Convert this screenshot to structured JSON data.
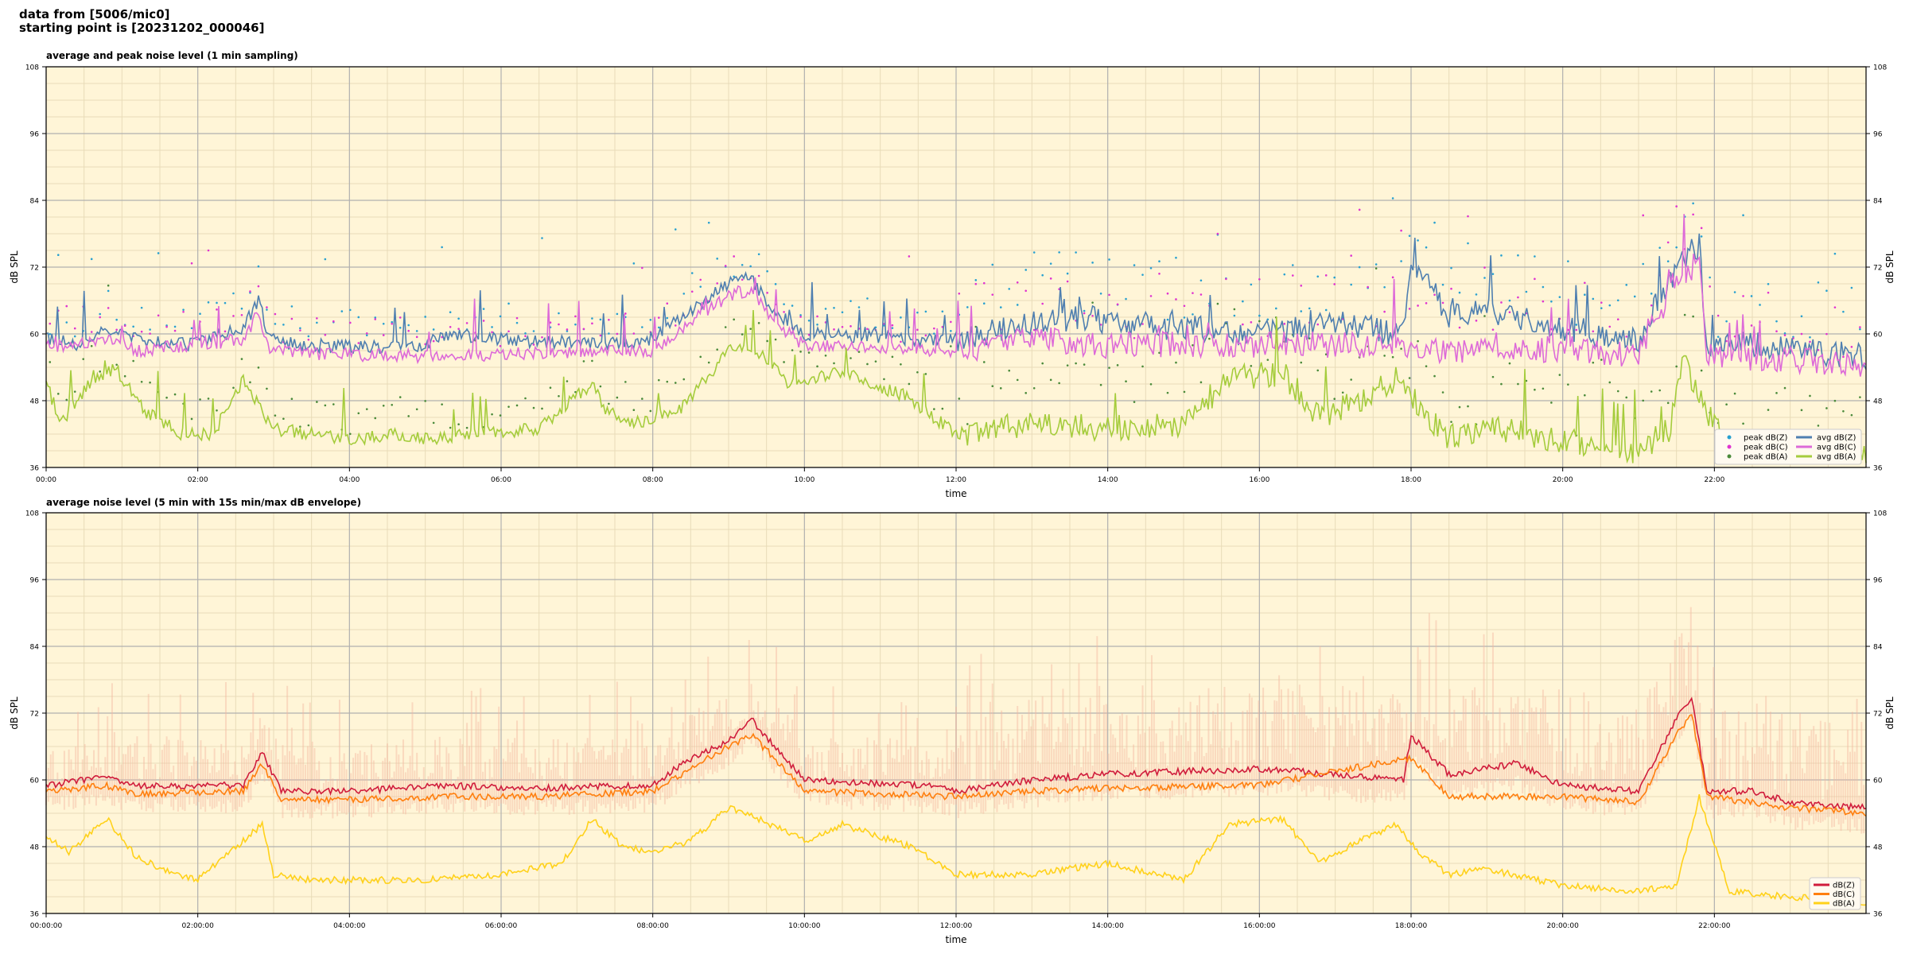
{
  "header": {
    "line1": "data from [5006/mic0]",
    "line2": "starting point is [20231202_000046]"
  },
  "chart_data": [
    {
      "type": "line",
      "title": "average and peak noise level (1 min sampling)",
      "xlabel": "time",
      "ylabel": "dB SPL",
      "ylim": [
        36,
        108
      ],
      "yticks": [
        "36",
        "48",
        "60",
        "72",
        "84",
        "96",
        "108"
      ],
      "xlim_hours": [
        0,
        24
      ],
      "xticks": [
        "00:00",
        "02:00",
        "04:00",
        "06:00",
        "08:00",
        "10:00",
        "12:00",
        "14:00",
        "16:00",
        "18:00",
        "20:00",
        "22:00"
      ],
      "grid": true,
      "background": "#fff5d7",
      "legend_position": "lower-right",
      "legend": [
        {
          "label": "peak dB(Z)",
          "kind": "point",
          "color": "#28a0d0"
        },
        {
          "label": "peak dB(C)",
          "kind": "point",
          "color": "#e033d0"
        },
        {
          "label": "peak dB(A)",
          "kind": "point",
          "color": "#4a8a3a"
        },
        {
          "label": "avg dB(Z)",
          "kind": "line",
          "color": "#4f7fb0"
        },
        {
          "label": "avg dB(C)",
          "kind": "line",
          "color": "#dd6ad8"
        },
        {
          "label": "avg dB(A)",
          "kind": "line",
          "color": "#a5cc3c"
        }
      ],
      "series": [
        {
          "name": "avg dB(Z)",
          "color": "#4f7fb0",
          "x": [
            0,
            0.5,
            0.8,
            1.2,
            1.9,
            2.6,
            2.8,
            2.95,
            3.3,
            5,
            5.2,
            6.5,
            7.9,
            8.4,
            9,
            9.3,
            9.6,
            10,
            11.5,
            12,
            13,
            13.8,
            14,
            15,
            16,
            17,
            17.9,
            18,
            18.5,
            19,
            20,
            21,
            21.5,
            21.8,
            21.9,
            22.5,
            23,
            24
          ],
          "y": [
            59,
            58,
            61,
            59,
            58,
            61,
            66,
            59,
            58,
            57.5,
            60,
            58.5,
            58.5,
            63,
            69,
            70,
            64,
            60,
            59,
            59,
            62,
            63,
            62,
            61,
            60,
            62,
            60,
            74,
            63,
            64,
            61,
            59,
            72,
            76,
            58,
            58,
            57,
            56
          ]
        },
        {
          "name": "avg dB(C)",
          "color": "#dd6ad8",
          "x": [
            0,
            0.8,
            1.2,
            2.6,
            2.8,
            2.95,
            3.3,
            5,
            6.5,
            8,
            9,
            9.3,
            9.6,
            10,
            12,
            13,
            14,
            16,
            18,
            18.5,
            20,
            21,
            21.5,
            21.8,
            21.9,
            23,
            24
          ],
          "y": [
            57.5,
            59,
            57,
            59,
            64,
            57,
            56.5,
            56,
            56.5,
            57,
            67,
            68,
            62,
            58,
            57,
            59,
            58,
            58,
            58,
            57,
            57,
            56,
            70,
            73,
            56,
            55.5,
            54
          ]
        },
        {
          "name": "avg dB(A)",
          "color": "#a5cc3c",
          "x": [
            0,
            0.2,
            0.5,
            0.9,
            1.3,
            1.8,
            2.2,
            2.6,
            2.8,
            3,
            3.5,
            4,
            4.7,
            5,
            5.6,
            6.5,
            7.2,
            7.4,
            7.8,
            8.4,
            9,
            9.3,
            9.8,
            10.5,
            11.3,
            12,
            13,
            14,
            15,
            15.6,
            16.3,
            16.8,
            17.3,
            17.8,
            18.1,
            18.5,
            19,
            19.5,
            20.5,
            21,
            21.4,
            21.6,
            21.8,
            22.2,
            23,
            24
          ],
          "y": [
            51,
            44,
            50,
            54,
            46,
            42,
            42,
            52,
            47,
            43,
            42,
            41,
            42,
            41,
            42,
            43,
            51,
            46,
            44,
            47,
            57,
            58,
            51,
            53,
            49,
            42,
            44,
            43,
            44,
            52,
            53,
            45,
            48,
            52,
            47,
            41,
            43,
            42,
            40,
            39,
            43,
            55,
            48,
            39,
            40,
            38
          ]
        }
      ]
    },
    {
      "type": "line",
      "title": "average noise level (5 min with 15s min/max dB envelope)",
      "xlabel": "time",
      "ylabel": "dB SPL",
      "ylim": [
        36,
        108
      ],
      "yticks": [
        "36",
        "48",
        "60",
        "72",
        "84",
        "96",
        "108"
      ],
      "xlim_hours": [
        0,
        24
      ],
      "xticks": [
        "00:00:00",
        "02:00:00",
        "04:00:00",
        "06:00:00",
        "08:00:00",
        "10:00:00",
        "12:00:00",
        "14:00:00",
        "16:00:00",
        "18:00:00",
        "20:00:00",
        "22:00:00"
      ],
      "grid": true,
      "background": "#fff5d7",
      "legend_position": "lower-right",
      "legend": [
        {
          "label": "dB(Z)",
          "kind": "line",
          "color": "#d01c3c"
        },
        {
          "label": "dB(C)",
          "kind": "line",
          "color": "#ff7f0e"
        },
        {
          "label": "dB(A)",
          "kind": "line",
          "color": "#ffd11a"
        }
      ],
      "series": [
        {
          "name": "dB(Z)",
          "color": "#d01c3c",
          "x": [
            0,
            0.8,
            1.1,
            2.6,
            2.85,
            3.1,
            4,
            5.3,
            6.5,
            8,
            8.4,
            9,
            9.3,
            9.6,
            10,
            11.6,
            12,
            13,
            14,
            16,
            17,
            17.9,
            18,
            18.5,
            19.4,
            20,
            21,
            21.5,
            21.7,
            21.9,
            22.5,
            23,
            24
          ],
          "y": [
            59,
            60.5,
            59,
            59,
            65,
            58,
            58,
            59,
            58.5,
            59,
            63,
            67,
            71,
            66,
            60,
            59,
            58,
            60,
            61,
            62,
            61,
            60,
            68,
            61,
            63,
            59,
            58,
            71,
            75,
            58,
            58,
            56,
            55
          ]
        },
        {
          "name": "dB(C)",
          "color": "#ff7f0e",
          "x": [
            0,
            0.8,
            1.1,
            2.6,
            2.85,
            3.1,
            4,
            5.3,
            6.5,
            8,
            9,
            9.3,
            9.6,
            10,
            12,
            13,
            14,
            16,
            18,
            18.5,
            20,
            21,
            21.5,
            21.7,
            21.9,
            23,
            24
          ],
          "y": [
            58,
            59,
            57.5,
            58,
            63,
            56.5,
            56.5,
            57,
            57,
            58,
            66,
            68,
            64,
            58,
            57,
            58,
            58.5,
            59,
            64,
            57,
            57,
            56,
            68,
            72,
            57,
            55,
            54
          ]
        },
        {
          "name": "dB(A)",
          "color": "#ffd11a",
          "x": [
            0,
            0.3,
            0.8,
            1.2,
            1.7,
            2,
            2.6,
            2.85,
            3,
            3.5,
            4,
            5,
            6,
            6.8,
            7.2,
            7.6,
            8,
            8.5,
            9,
            9.4,
            10,
            10.5,
            11.4,
            12,
            13,
            14,
            15,
            15.6,
            16.3,
            16.8,
            17.3,
            17.8,
            18.1,
            18.5,
            19,
            20,
            21,
            21.5,
            21.8,
            22.2,
            23,
            24
          ],
          "y": [
            50,
            47,
            53,
            46,
            43,
            42,
            49,
            52,
            43,
            42,
            42,
            42,
            43,
            45,
            53,
            48,
            47,
            49,
            55,
            53,
            49,
            52,
            48,
            43,
            43,
            45,
            42,
            52,
            53,
            45,
            49,
            52,
            47,
            43,
            44,
            41,
            40,
            41,
            57,
            40,
            39,
            38
          ]
        }
      ]
    }
  ]
}
